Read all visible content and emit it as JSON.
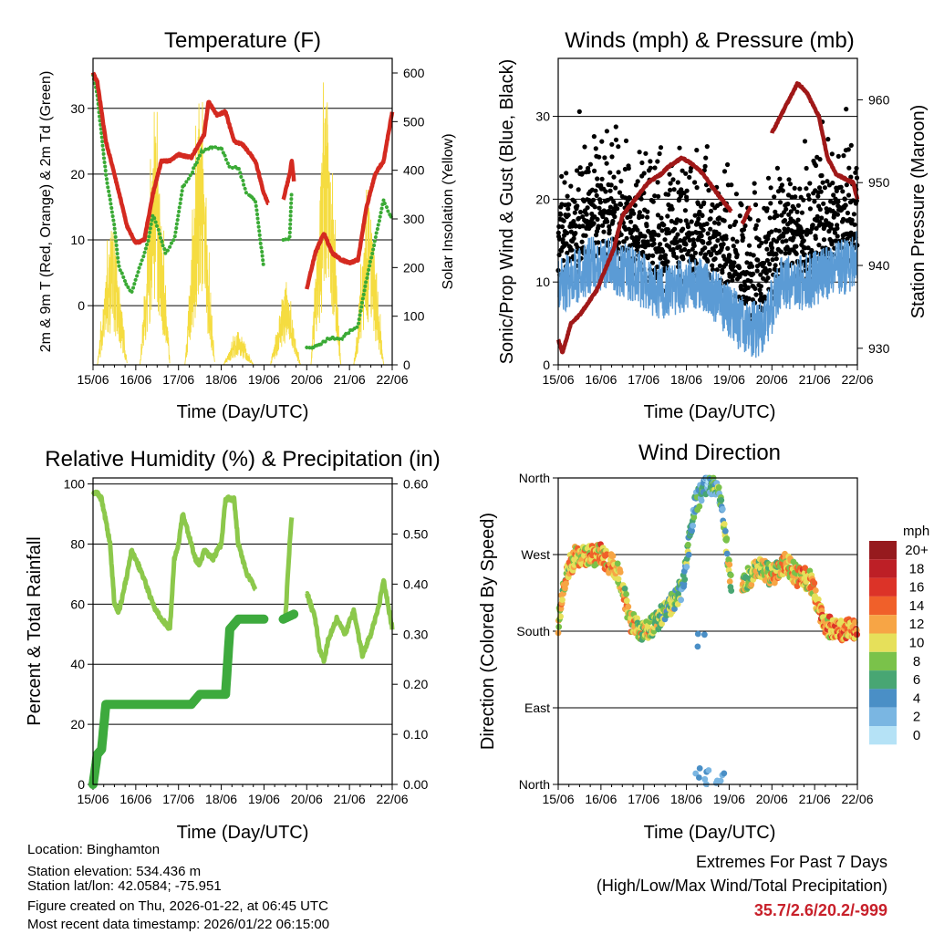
{
  "chart_data": [
    {
      "type": "line",
      "title": "Temperature (F)",
      "xlabel": "Time (Day/UTC)",
      "ylabel": "2m & 9m T (Red, Orange) & 2m Td (Green)",
      "y2label": "Solar Insolation (Yellow)",
      "x_ticks": [
        "15/06",
        "16/06",
        "17/06",
        "18/06",
        "19/06",
        "20/06",
        "21/06",
        "22/06"
      ],
      "y_ticks": [
        "30",
        "20",
        "10",
        "0"
      ],
      "y_tick_values": [
        30,
        20,
        10,
        0
      ],
      "y2_ticks": [
        "600",
        "500",
        "400",
        "300",
        "200",
        "100",
        "0"
      ],
      "y2_tick_values": [
        600,
        500,
        400,
        300,
        200,
        100,
        0
      ],
      "ylim": [
        -9,
        37.6
      ],
      "y2lim": [
        0,
        630
      ],
      "colors": {
        "temp": "#d42a20",
        "dew": "#3aaa35",
        "solar": "#f5dc40"
      },
      "series": [
        {
          "name": "2m T",
          "segments": [
            [
              [
                0,
                35.5
              ],
              [
                0.1,
                34
              ],
              [
                0.3,
                25
              ],
              [
                0.5,
                20
              ],
              [
                0.8,
                12
              ],
              [
                1.0,
                9.5
              ],
              [
                1.2,
                10
              ],
              [
                1.4,
                17
              ],
              [
                1.6,
                22
              ],
              [
                1.8,
                22
              ],
              [
                2.0,
                23
              ],
              [
                2.3,
                22.5
              ],
              [
                2.6,
                26
              ],
              [
                2.7,
                31
              ],
              [
                2.9,
                29
              ],
              [
                3.1,
                29.5
              ],
              [
                3.3,
                25
              ],
              [
                3.5,
                24.5
              ],
              [
                3.8,
                22
              ],
              [
                4.0,
                17
              ],
              [
                4.1,
                15.5
              ]
            ],
            [
              [
                4.45,
                16
              ],
              [
                4.6,
                20
              ],
              [
                4.65,
                22
              ],
              [
                4.7,
                19
              ]
            ],
            [
              [
                5.0,
                2.5
              ],
              [
                5.2,
                8
              ],
              [
                5.4,
                11
              ],
              [
                5.6,
                8
              ],
              [
                5.8,
                7
              ],
              [
                6.0,
                6.5
              ],
              [
                6.2,
                7
              ],
              [
                6.4,
                15
              ],
              [
                6.6,
                20
              ],
              [
                6.8,
                22
              ],
              [
                7.0,
                29.5
              ]
            ]
          ]
        },
        {
          "name": "2m Td",
          "segments": [
            [
              [
                0,
                35
              ],
              [
                0.1,
                32
              ],
              [
                0.3,
                20
              ],
              [
                0.5,
                12
              ],
              [
                0.6,
                6
              ],
              [
                0.8,
                3
              ],
              [
                0.9,
                2
              ],
              [
                1.1,
                6
              ],
              [
                1.3,
                10
              ],
              [
                1.4,
                14
              ],
              [
                1.6,
                10
              ],
              [
                1.7,
                8
              ],
              [
                1.9,
                10
              ],
              [
                2.1,
                18
              ],
              [
                2.3,
                20
              ],
              [
                2.5,
                23
              ],
              [
                2.7,
                24
              ],
              [
                3.0,
                24
              ],
              [
                3.2,
                21
              ],
              [
                3.4,
                21
              ],
              [
                3.6,
                17
              ],
              [
                3.8,
                16
              ],
              [
                4.0,
                5.5
              ]
            ],
            [
              [
                4.45,
                10
              ],
              [
                4.6,
                10
              ],
              [
                4.65,
                18
              ]
            ],
            [
              [
                5.0,
                -6.5
              ],
              [
                5.3,
                -6
              ],
              [
                5.5,
                -5
              ],
              [
                5.8,
                -5
              ],
              [
                6.0,
                -4
              ],
              [
                6.2,
                -3
              ],
              [
                6.4,
                4
              ],
              [
                6.6,
                10
              ],
              [
                6.8,
                16
              ],
              [
                7.0,
                13
              ]
            ]
          ]
        },
        {
          "name": "Solar Insolation",
          "daily_peaks": [
            [
              0.45,
              300
            ],
            [
              1.45,
              520
            ],
            [
              2.5,
              540
            ],
            [
              3.4,
              70
            ],
            [
              4.5,
              170
            ],
            [
              5.45,
              600
            ],
            [
              6.45,
              360
            ]
          ]
        }
      ]
    },
    {
      "type": "scatter",
      "title": "Winds (mph) & Pressure (mb)",
      "xlabel": "Time (Day/UTC)",
      "ylabel": "Sonic/Prop Wind & Gust (Blue, Black)",
      "y2label": "Station Pressure (Maroon)",
      "x_ticks": [
        "15/06",
        "16/06",
        "17/06",
        "18/06",
        "19/06",
        "20/06",
        "21/06",
        "22/06"
      ],
      "y_ticks": [
        "30",
        "20",
        "10",
        "0"
      ],
      "y_tick_values": [
        30,
        20,
        10,
        0
      ],
      "y2_ticks": [
        "960",
        "950",
        "940",
        "930"
      ],
      "y2_tick_values": [
        960,
        950,
        940,
        930
      ],
      "ylim": [
        0,
        37
      ],
      "y2lim": [
        928,
        965
      ],
      "colors": {
        "wind": "#5b9bd5",
        "gust": "#000000",
        "pressure": "#a01818"
      },
      "series": [
        {
          "name": "Sustained wind (half-day means)",
          "x_step": 0.5,
          "values": [
            10,
            12,
            12,
            11,
            9,
            9,
            10,
            8,
            5,
            4,
            10,
            10,
            11,
            12,
            14
          ]
        },
        {
          "name": "Station Pressure",
          "segments": [
            [
              [
                0,
                931
              ],
              [
                0.1,
                929.5
              ],
              [
                0.3,
                933
              ],
              [
                0.5,
                934
              ],
              [
                0.9,
                937
              ],
              [
                1.3,
                942
              ],
              [
                1.5,
                946
              ],
              [
                1.8,
                948
              ],
              [
                2.1,
                950
              ],
              [
                2.4,
                951
              ],
              [
                2.6,
                952
              ],
              [
                2.9,
                953
              ],
              [
                3.2,
                952
              ],
              [
                3.4,
                951
              ],
              [
                3.6,
                949.5
              ],
              [
                3.9,
                947.5
              ],
              [
                4.05,
                946.5
              ]
            ],
            [
              [
                4.3,
                945
              ],
              [
                4.5,
                947
              ]
            ],
            [
              [
                5.0,
                956
              ],
              [
                5.3,
                959
              ],
              [
                5.6,
                962
              ],
              [
                5.8,
                961
              ],
              [
                6.1,
                958
              ],
              [
                6.3,
                953
              ],
              [
                6.5,
                951
              ],
              [
                6.9,
                950
              ],
              [
                7.0,
                948
              ]
            ]
          ]
        }
      ]
    },
    {
      "type": "line",
      "title": "Relative Humidity (%) & Precipitation (in)",
      "xlabel": "Time (Day/UTC)",
      "ylabel": "Percent & Total Rainfall",
      "x_ticks": [
        "15/06",
        "16/06",
        "17/06",
        "18/06",
        "19/06",
        "20/06",
        "21/06",
        "22/06"
      ],
      "y_ticks": [
        "100",
        "80",
        "60",
        "40",
        "20",
        "0"
      ],
      "y_tick_values": [
        100,
        80,
        60,
        40,
        20,
        0
      ],
      "y2_ticks": [
        "0.60",
        "0.50",
        "0.40",
        "0.30",
        "0.20",
        "0.10",
        "0.00"
      ],
      "y2_tick_values": [
        0.6,
        0.5,
        0.4,
        0.3,
        0.2,
        0.1,
        0
      ],
      "ylim": [
        0,
        102
      ],
      "y2lim": [
        0,
        0.612
      ],
      "colors": {
        "rh": "#8cc84b",
        "precip": "#3daa3d"
      },
      "series": [
        {
          "name": "Relative Humidity",
          "segments": [
            [
              [
                0,
                97
              ],
              [
                0.1,
                97
              ],
              [
                0.2,
                95
              ],
              [
                0.4,
                80
              ],
              [
                0.5,
                60
              ],
              [
                0.6,
                57
              ],
              [
                0.8,
                70
              ],
              [
                0.9,
                78
              ],
              [
                1.0,
                75
              ],
              [
                1.2,
                68
              ],
              [
                1.4,
                60
              ],
              [
                1.6,
                55
              ],
              [
                1.8,
                52
              ],
              [
                1.9,
                75
              ],
              [
                2.0,
                80
              ],
              [
                2.1,
                90
              ],
              [
                2.2,
                85
              ],
              [
                2.4,
                75
              ],
              [
                2.5,
                73
              ],
              [
                2.6,
                78
              ],
              [
                2.8,
                75
              ],
              [
                3.0,
                80
              ],
              [
                3.1,
                95
              ],
              [
                3.3,
                95
              ],
              [
                3.4,
                80
              ],
              [
                3.6,
                70
              ],
              [
                3.8,
                65
              ]
            ],
            [
              [
                4.5,
                55
              ],
              [
                4.6,
                80
              ],
              [
                4.65,
                89
              ]
            ],
            [
              [
                5.0,
                64
              ],
              [
                5.2,
                55
              ],
              [
                5.3,
                45
              ],
              [
                5.4,
                41
              ],
              [
                5.5,
                48
              ],
              [
                5.7,
                55
              ],
              [
                5.9,
                50
              ],
              [
                6.1,
                58
              ],
              [
                6.3,
                43
              ],
              [
                6.5,
                50
              ],
              [
                6.7,
                60
              ],
              [
                6.8,
                68
              ],
              [
                7.0,
                52
              ]
            ]
          ]
        },
        {
          "name": "Total Precipitation",
          "segments": [
            [
              [
                0,
                0
              ],
              [
                0.1,
                0.06
              ],
              [
                0.2,
                0.07
              ],
              [
                0.3,
                0.16
              ],
              [
                1.0,
                0.16
              ],
              [
                2.3,
                0.16
              ],
              [
                2.5,
                0.18
              ],
              [
                3.1,
                0.18
              ],
              [
                3.2,
                0.31
              ],
              [
                3.4,
                0.33
              ],
              [
                4.0,
                0.33
              ]
            ],
            [
              [
                4.45,
                0.33
              ],
              [
                4.7,
                0.34
              ]
            ]
          ]
        }
      ]
    },
    {
      "type": "scatter",
      "title": "Wind Direction",
      "xlabel": "Time (Day/UTC)",
      "ylabel": "Direction (Colored By Speed)",
      "x_ticks": [
        "15/06",
        "16/06",
        "17/06",
        "18/06",
        "19/06",
        "20/06",
        "21/06",
        "22/06"
      ],
      "y_ticks": [
        "North",
        "West",
        "South",
        "East",
        "North"
      ],
      "y_tick_values": [
        360,
        270,
        180,
        90,
        0
      ],
      "ylim": [
        0,
        360
      ],
      "series": [
        {
          "name": "Direction (deg)",
          "points": [
            [
              0,
              190
            ],
            [
              0.2,
              250
            ],
            [
              0.4,
              268
            ],
            [
              1.0,
              270
            ],
            [
              1.4,
              250
            ],
            [
              1.7,
              190
            ],
            [
              2.0,
              180
            ],
            [
              2.3,
              190
            ],
            [
              2.6,
              210
            ],
            [
              2.9,
              230
            ],
            [
              3.2,
              330
            ],
            [
              3.5,
              355
            ],
            [
              3.8,
              340
            ],
            [
              4.1,
              210
            ],
            [
              4.4,
              240
            ],
            [
              4.7,
              255
            ],
            [
              5.0,
              245
            ],
            [
              5.3,
              260
            ],
            [
              5.6,
              245
            ],
            [
              5.9,
              240
            ],
            [
              6.2,
              190
            ],
            [
              6.5,
              180
            ],
            [
              7.0,
              183
            ]
          ]
        }
      ],
      "legend": {
        "title": "mph",
        "placement": "right",
        "labels": [
          "20+",
          "18",
          "16",
          "14",
          "12",
          "10",
          "8",
          "6",
          "4",
          "2",
          "0"
        ],
        "colors": [
          "#961a1e",
          "#bd1f26",
          "#dc3328",
          "#f0602a",
          "#f7a545",
          "#e6e05a",
          "#7ac24a",
          "#48a673",
          "#4a8fc6",
          "#7ab6e2",
          "#b5e2f6"
        ]
      }
    }
  ],
  "info": {
    "location": "Location: Binghamton",
    "elevation": "Station elevation: 534.436 m",
    "latlon": "Station lat/lon: 42.0584; -75.951",
    "created": "Figure created on Thu, 2026-01-22, at 06:45 UTC",
    "recent": "Most recent data timestamp: 2026/01/22 06:15:00"
  },
  "extremes": {
    "title": "Extremes For Past 7 Days",
    "subtitle": "(High/Low/Max Wind/Total Precipitation)",
    "values": "35.7/2.6/20.2/-999"
  }
}
